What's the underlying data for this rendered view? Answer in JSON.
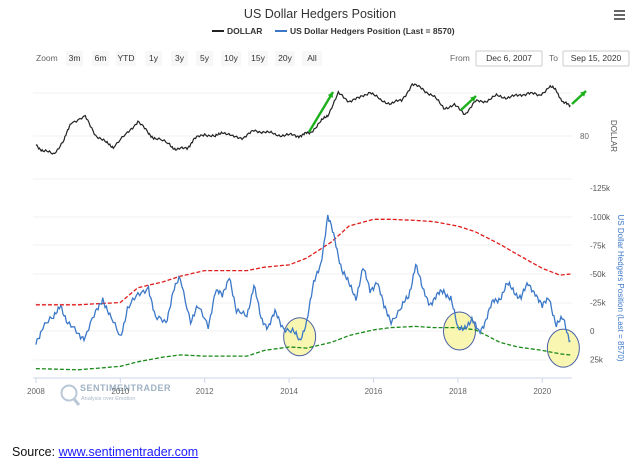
{
  "title": "US Dollar Hedgers Position",
  "legend": {
    "dollar": "DOLLAR",
    "hedgers": "US Dollar Hedgers Position (Last = 8570)"
  },
  "colors": {
    "dollar": "#222222",
    "hedgers": "#3c78c8",
    "upper_band": "#e01b1b",
    "lower_band": "#1a8a1a",
    "highlight_fill": "#f8f6b0",
    "highlight_stroke": "#4a5fa6",
    "arrow": "#1cb01c"
  },
  "toolbar": {
    "zoom_label": "Zoom",
    "zoom_buttons": [
      "3m",
      "6m",
      "YTD",
      "1y",
      "3y",
      "5y",
      "10y",
      "15y",
      "20y",
      "All"
    ],
    "from_label": "From",
    "from_value": "Dec 6, 2007",
    "to_label": "To",
    "to_value": "Sep 15, 2020",
    "menu_icon": "hamburger-menu-icon"
  },
  "watermark": {
    "brand": "SENTIMENTRADER",
    "tagline": "Analysis over Emotion",
    "icon": "magnifier-logo-icon"
  },
  "source": {
    "label": "Source:",
    "link": "www.sentimentrader.com"
  },
  "chart_data": {
    "type": "line",
    "x_range": [
      "2007-12-06",
      "2020-09-15"
    ],
    "x_ticks": [
      "2008",
      "2010",
      "2012",
      "2014",
      "2016",
      "2018",
      "2020"
    ],
    "top_panel": {
      "ylabel": "DOLLAR",
      "y_ticks": [
        "80"
      ],
      "series": [
        {
          "name": "DOLLAR",
          "x": [
            "2008-01",
            "2008-03",
            "2008-06",
            "2008-09",
            "2008-11",
            "2009-03",
            "2009-06",
            "2009-09",
            "2009-11",
            "2010-03",
            "2010-06",
            "2010-09",
            "2010-11",
            "2011-03",
            "2011-05",
            "2011-08",
            "2011-10",
            "2012-01",
            "2012-04",
            "2012-06",
            "2012-09",
            "2012-12",
            "2013-03",
            "2013-06",
            "2013-09",
            "2013-12",
            "2014-03",
            "2014-05",
            "2014-07",
            "2014-10",
            "2014-12",
            "2015-03",
            "2015-06",
            "2015-09",
            "2015-12",
            "2016-03",
            "2016-06",
            "2016-09",
            "2016-12",
            "2017-03",
            "2017-06",
            "2017-09",
            "2017-12",
            "2018-03",
            "2018-06",
            "2018-09",
            "2018-12",
            "2019-03",
            "2019-06",
            "2019-09",
            "2019-12",
            "2020-03",
            "2020-05",
            "2020-07",
            "2020-09"
          ],
          "values": [
            76.5,
            73.5,
            72.5,
            78,
            86,
            88,
            80.5,
            77,
            75.5,
            81,
            86.5,
            81,
            79,
            76.5,
            74,
            75,
            78.5,
            81,
            79.5,
            82,
            79.5,
            79.5,
            82,
            82,
            80.5,
            80.5,
            80,
            80.5,
            81.5,
            86,
            89,
            98,
            95,
            96,
            99,
            95,
            94,
            95,
            102,
            100,
            97,
            92,
            93,
            89.5,
            94.5,
            95,
            97,
            96.5,
            97,
            98.5,
            97,
            101,
            99.5,
            94,
            93
          ]
        }
      ]
    },
    "bottom_panel": {
      "ylabel": "US Dollar Hedgers Position (Last = 8570)",
      "y_reversed": true,
      "y_ticks": [
        "-125k",
        "-100k",
        "-75k",
        "-50k",
        "-25k",
        "0",
        "25k"
      ],
      "series": [
        {
          "name": "US Dollar Hedgers Position (Last = 8570)",
          "x": [
            "2008-01",
            "2008-03",
            "2008-06",
            "2008-08",
            "2008-10",
            "2009-01",
            "2009-03",
            "2009-06",
            "2009-08",
            "2009-10",
            "2010-01",
            "2010-03",
            "2010-06",
            "2010-09",
            "2010-11",
            "2011-02",
            "2011-04",
            "2011-06",
            "2011-09",
            "2011-11",
            "2012-02",
            "2012-04",
            "2012-06",
            "2012-08",
            "2012-10",
            "2013-01",
            "2013-03",
            "2013-05",
            "2013-07",
            "2013-09",
            "2013-11",
            "2014-02",
            "2014-04",
            "2014-06",
            "2014-08",
            "2014-10",
            "2014-12",
            "2015-02",
            "2015-04",
            "2015-06",
            "2015-08",
            "2015-10",
            "2015-12",
            "2016-02",
            "2016-04",
            "2016-06",
            "2016-09",
            "2016-11",
            "2017-01",
            "2017-03",
            "2017-05",
            "2017-07",
            "2017-09",
            "2017-11",
            "2018-01",
            "2018-03",
            "2018-05",
            "2018-07",
            "2018-09",
            "2018-11",
            "2019-01",
            "2019-03",
            "2019-05",
            "2019-07",
            "2019-09",
            "2019-11",
            "2020-01",
            "2020-03",
            "2020-05",
            "2020-07",
            "2020-09"
          ],
          "values": [
            10,
            -5,
            -10,
            -25,
            -5,
            2,
            5,
            -15,
            -30,
            -12,
            5,
            -20,
            -30,
            -40,
            -10,
            -8,
            -35,
            -45,
            -10,
            -20,
            -5,
            -35,
            -30,
            -50,
            -15,
            -15,
            -40,
            -10,
            -5,
            -15,
            -5,
            0,
            10,
            -10,
            -40,
            -60,
            -100,
            -80,
            -55,
            -40,
            -30,
            -55,
            -35,
            -45,
            -20,
            -10,
            -20,
            -30,
            -60,
            -35,
            -25,
            -30,
            -35,
            -30,
            0,
            -5,
            -8,
            0,
            -10,
            -25,
            -30,
            -40,
            -35,
            -30,
            -40,
            -35,
            -20,
            -30,
            -5,
            -10,
            8.57
          ]
        },
        {
          "name": "",
          "x": [
            "2008-01",
            "2009-01",
            "2010-01",
            "2010-06",
            "2011-01",
            "2011-06",
            "2012-01",
            "2013-01",
            "2013-06",
            "2014-01",
            "2014-06",
            "2015-01",
            "2015-06",
            "2016-01",
            "2016-06",
            "2017-01",
            "2017-06",
            "2018-01",
            "2018-06",
            "2019-01",
            "2019-06",
            "2020-01",
            "2020-06",
            "2020-09"
          ],
          "values": [
            -23,
            -23,
            -25,
            -38,
            -43,
            -48,
            -53,
            -53,
            -56,
            -58,
            -64,
            -78,
            -92,
            -98,
            -98,
            -97,
            -96,
            -92,
            -87,
            -76,
            -67,
            -55,
            -49,
            -50
          ]
        },
        {
          "name": "",
          "x": [
            "2008-01",
            "2009-01",
            "2010-01",
            "2010-06",
            "2011-01",
            "2011-06",
            "2012-01",
            "2013-01",
            "2013-06",
            "2014-01",
            "2014-06",
            "2015-01",
            "2015-06",
            "2016-01",
            "2016-06",
            "2017-01",
            "2017-06",
            "2018-01",
            "2018-06",
            "2019-01",
            "2019-06",
            "2020-01",
            "2020-06",
            "2020-09"
          ],
          "values": [
            33,
            34,
            31,
            27,
            23,
            21,
            22,
            22,
            17,
            14,
            15,
            10,
            4,
            -1,
            -3,
            -4,
            -3,
            -3,
            -1,
            10,
            14,
            17,
            20,
            21
          ]
        }
      ]
    }
  }
}
